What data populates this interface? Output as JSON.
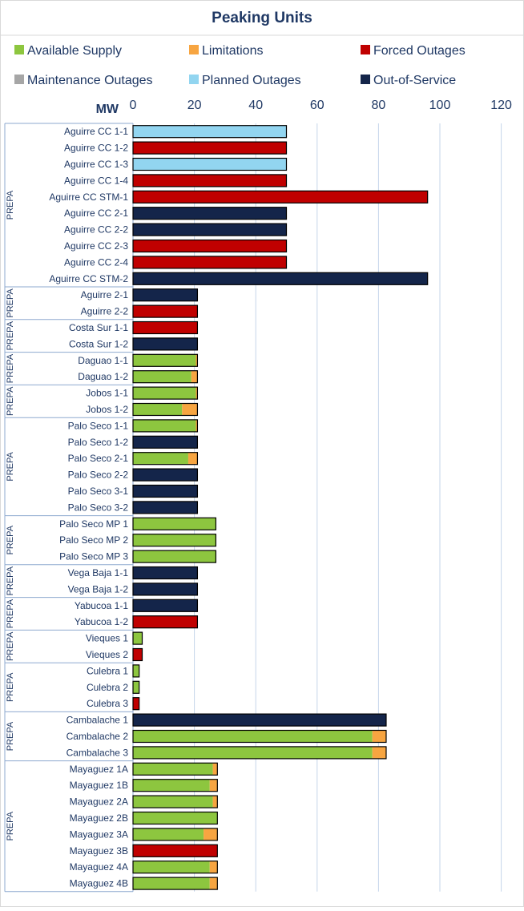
{
  "chart_data": {
    "type": "bar",
    "orientation": "horizontal",
    "stacked": true,
    "title": "Peaking Units",
    "xlabel": "MW",
    "xlim": [
      0,
      120
    ],
    "xticks": [
      0,
      20,
      40,
      60,
      80,
      100,
      120
    ],
    "grid": true,
    "legend_position": "top",
    "legend": [
      {
        "key": "available",
        "label": "Available Supply",
        "color": "#8dc63f"
      },
      {
        "key": "limitations",
        "label": "Limitations",
        "color": "#f7a541"
      },
      {
        "key": "forced",
        "label": "Forced Outages",
        "color": "#c00000"
      },
      {
        "key": "maintenance",
        "label": "Maintenance Outages",
        "color": "#a6a6a6"
      },
      {
        "key": "planned",
        "label": "Planned Outages",
        "color": "#92d5f0"
      },
      {
        "key": "oos",
        "label": "Out-of-Service",
        "color": "#14254a"
      }
    ],
    "groups": [
      {
        "label": "PREPA",
        "units": [
          {
            "name": "Aguirre CC 1-1",
            "planned": 50
          },
          {
            "name": "Aguirre CC 1-2",
            "forced": 50
          },
          {
            "name": "Aguirre CC 1-3",
            "planned": 50
          },
          {
            "name": "Aguirre CC 1-4",
            "forced": 50
          },
          {
            "name": "Aguirre CC STM-1",
            "forced": 96
          },
          {
            "name": "Aguirre CC 2-1",
            "oos": 50
          },
          {
            "name": "Aguirre CC 2-2",
            "oos": 50
          },
          {
            "name": "Aguirre CC 2-3",
            "forced": 50
          },
          {
            "name": "Aguirre CC 2-4",
            "forced": 50
          },
          {
            "name": "Aguirre CC STM-2",
            "oos": 96
          }
        ]
      },
      {
        "label": "PREPA",
        "units": [
          {
            "name": "Aguirre 2-1",
            "oos": 21
          },
          {
            "name": "Aguirre 2-2",
            "forced": 21
          }
        ]
      },
      {
        "label": "PREPA",
        "units": [
          {
            "name": "Costa Sur 1-1",
            "forced": 21
          },
          {
            "name": "Costa Sur 1-2",
            "oos": 21
          }
        ]
      },
      {
        "label": "PREPA",
        "units": [
          {
            "name": "Daguao 1-1",
            "available": 20.5,
            "limitations": 0.5
          },
          {
            "name": "Daguao 1-2",
            "available": 19,
            "limitations": 2
          }
        ]
      },
      {
        "label": "PREPA",
        "units": [
          {
            "name": "Jobos 1-1",
            "available": 20.5,
            "limitations": 0.5
          },
          {
            "name": "Jobos 1-2",
            "available": 16,
            "limitations": 5
          }
        ]
      },
      {
        "label": "PREPA",
        "units": [
          {
            "name": "Palo Seco 1-1",
            "available": 20.5,
            "limitations": 0.5
          },
          {
            "name": "Palo Seco 1-2",
            "oos": 21
          },
          {
            "name": "Palo Seco 2-1",
            "available": 18,
            "limitations": 3
          },
          {
            "name": "Palo Seco 2-2",
            "oos": 21
          },
          {
            "name": "Palo Seco 3-1",
            "oos": 21
          },
          {
            "name": "Palo Seco 3-2",
            "oos": 21
          }
        ]
      },
      {
        "label": "PREPA",
        "units": [
          {
            "name": "Palo Seco MP 1",
            "available": 27
          },
          {
            "name": "Palo Seco MP 2",
            "available": 27
          },
          {
            "name": "Palo Seco MP 3",
            "available": 27
          }
        ]
      },
      {
        "label": "PREPA",
        "units": [
          {
            "name": "Vega Baja 1-1",
            "oos": 21
          },
          {
            "name": "Vega Baja 1-2",
            "oos": 21
          }
        ]
      },
      {
        "label": "PREPA",
        "units": [
          {
            "name": "Yabucoa 1-1",
            "oos": 21
          },
          {
            "name": "Yabucoa 1-2",
            "forced": 21
          }
        ]
      },
      {
        "label": "PREPA",
        "units": [
          {
            "name": "Vieques 1",
            "available": 3
          },
          {
            "name": "Vieques 2",
            "forced": 3
          }
        ]
      },
      {
        "label": "PREPA",
        "units": [
          {
            "name": "Culebra 1",
            "available": 2
          },
          {
            "name": "Culebra 2",
            "available": 2
          },
          {
            "name": "Culebra 3",
            "forced": 2
          }
        ]
      },
      {
        "label": "PREPA",
        "units": [
          {
            "name": "Cambalache 1",
            "oos": 82.5
          },
          {
            "name": "Cambalache 2",
            "available": 78,
            "limitations": 4.5
          },
          {
            "name": "Cambalache 3",
            "available": 78,
            "limitations": 4.5
          }
        ]
      },
      {
        "label": "PREPA",
        "units": [
          {
            "name": "Mayaguez 1A",
            "available": 26,
            "limitations": 1.5
          },
          {
            "name": "Mayaguez 1B",
            "available": 25,
            "limitations": 2.5
          },
          {
            "name": "Mayaguez 2A",
            "available": 26,
            "limitations": 1.5
          },
          {
            "name": "Mayaguez 2B",
            "available": 27.5
          },
          {
            "name": "Mayaguez 3A",
            "available": 23,
            "limitations": 4.5
          },
          {
            "name": "Mayaguez 3B",
            "forced": 27.5
          },
          {
            "name": "Mayaguez 4A",
            "available": 25,
            "limitations": 2.5
          },
          {
            "name": "Mayaguez 4B",
            "available": 25,
            "limitations": 2.5
          }
        ]
      }
    ]
  }
}
